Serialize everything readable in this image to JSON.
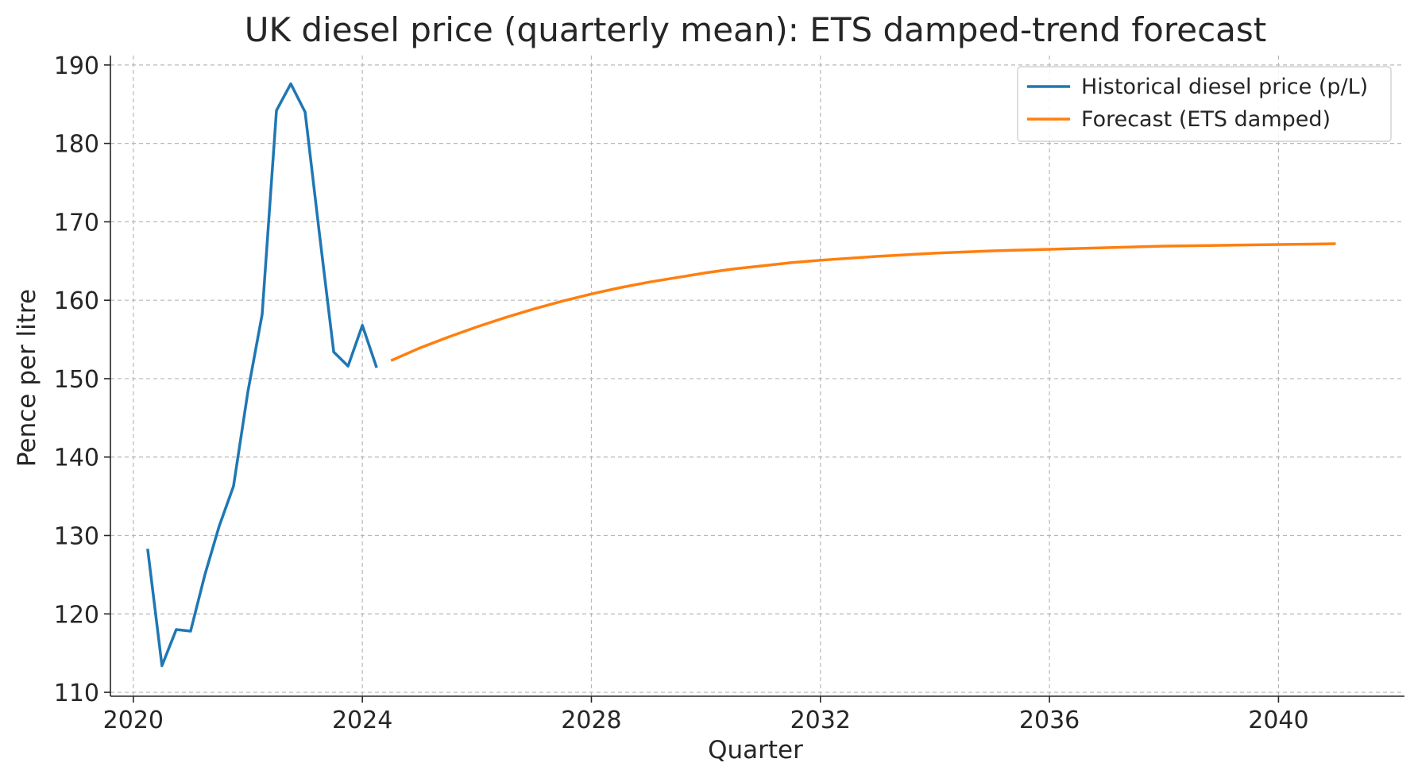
{
  "chart_data": {
    "type": "line",
    "title": "UK diesel price (quarterly mean): ETS damped-trend forecast",
    "xlabel": "Quarter",
    "ylabel": "Pence per litre",
    "xlim": [
      2019.6,
      2042.2
    ],
    "ylim": [
      109.5,
      191.2
    ],
    "x_ticks": [
      2020,
      2024,
      2028,
      2032,
      2036,
      2040
    ],
    "x_tick_labels": [
      "2020",
      "2024",
      "2028",
      "2032",
      "2036",
      "2040"
    ],
    "y_ticks": [
      110,
      120,
      130,
      140,
      150,
      160,
      170,
      180,
      190
    ],
    "y_tick_labels": [
      "110",
      "120",
      "130",
      "140",
      "150",
      "160",
      "170",
      "180",
      "190"
    ],
    "grid": true,
    "legend_position": "top-right",
    "series": [
      {
        "name": "Historical diesel price (p/L)",
        "color": "#1f77b4",
        "points": [
          [
            2020.25,
            128.3
          ],
          [
            2020.5,
            113.4
          ],
          [
            2020.75,
            118.0
          ],
          [
            2021.0,
            117.8
          ],
          [
            2021.25,
            125.0
          ],
          [
            2021.5,
            131.2
          ],
          [
            2021.75,
            136.3
          ],
          [
            2022.0,
            148.3
          ],
          [
            2022.25,
            158.2
          ],
          [
            2022.5,
            184.2
          ],
          [
            2022.75,
            187.6
          ],
          [
            2023.0,
            184.0
          ],
          [
            2023.25,
            168.5
          ],
          [
            2023.5,
            153.4
          ],
          [
            2023.75,
            151.6
          ],
          [
            2024.0,
            156.8
          ],
          [
            2024.25,
            151.4
          ]
        ]
      },
      {
        "name": "Forecast (ETS damped)",
        "color": "#ff7f0e",
        "points": [
          [
            2024.5,
            152.3
          ],
          [
            2025.0,
            153.9
          ],
          [
            2025.5,
            155.3
          ],
          [
            2026.0,
            156.6
          ],
          [
            2026.5,
            157.8
          ],
          [
            2027.0,
            158.9
          ],
          [
            2027.5,
            159.9
          ],
          [
            2028.0,
            160.8
          ],
          [
            2028.5,
            161.6
          ],
          [
            2029.0,
            162.3
          ],
          [
            2029.5,
            162.9
          ],
          [
            2030.0,
            163.5
          ],
          [
            2030.5,
            164.0
          ],
          [
            2031.0,
            164.4
          ],
          [
            2031.5,
            164.8
          ],
          [
            2032.0,
            165.1
          ],
          [
            2033.0,
            165.6
          ],
          [
            2034.0,
            166.0
          ],
          [
            2035.0,
            166.3
          ],
          [
            2036.0,
            166.5
          ],
          [
            2037.0,
            166.7
          ],
          [
            2038.0,
            166.9
          ],
          [
            2039.0,
            167.0
          ],
          [
            2040.0,
            167.1
          ],
          [
            2041.0,
            167.2
          ]
        ]
      }
    ]
  }
}
